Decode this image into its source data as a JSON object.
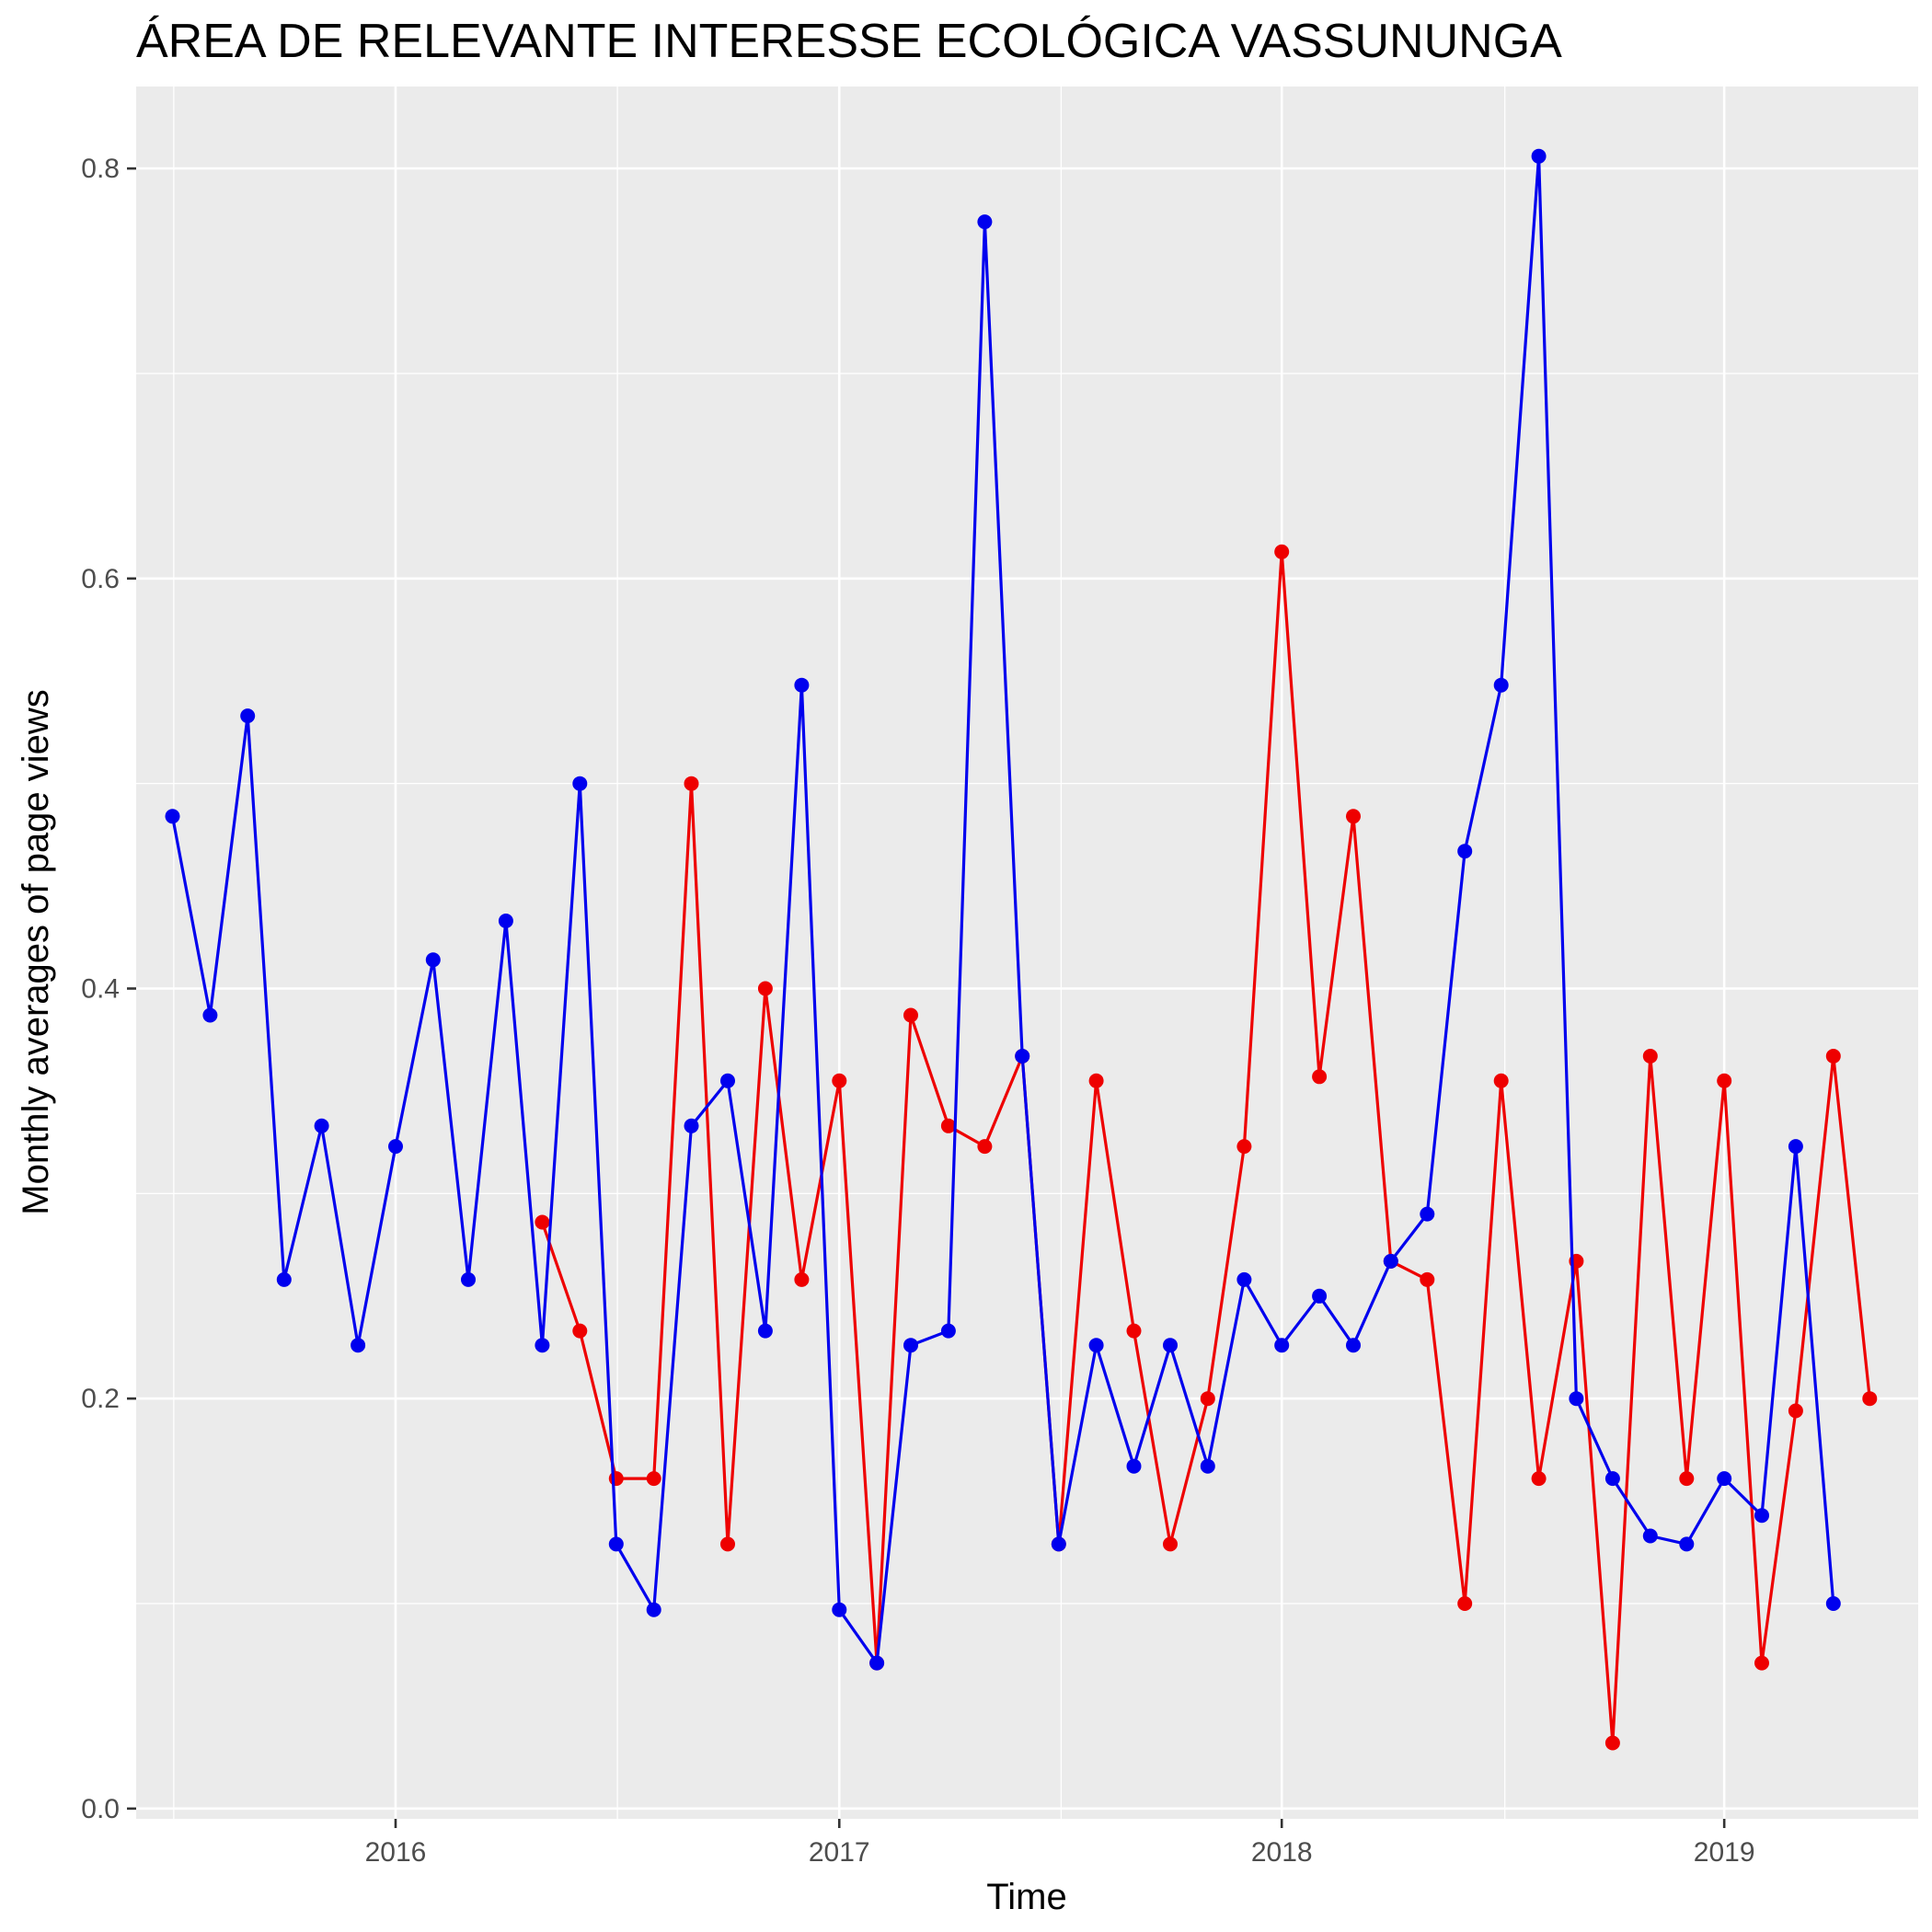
{
  "chart_data": {
    "type": "line",
    "title": "ÁREA DE RELEVANTE INTERESSE ECOLÓGICA VASSUNUNGA",
    "xlabel": "Time",
    "ylabel": "Monthly averages of page views",
    "xlim": [
      "2015-06-01",
      "2019-06-10"
    ],
    "ylim": [
      -0.005,
      0.84
    ],
    "x_ticks": [
      "2016-01-01",
      "2017-01-01",
      "2018-01-01",
      "2019-01-01"
    ],
    "x_tick_labels": [
      "2016",
      "2017",
      "2018",
      "2019"
    ],
    "y_ticks": [
      0.0,
      0.2,
      0.4,
      0.6,
      0.8
    ],
    "y_tick_labels": [
      "0.0",
      "0.2",
      "0.4",
      "0.6",
      "0.8"
    ],
    "grid": true,
    "legend": "none",
    "background": "#EBEBEB",
    "series": [
      {
        "color": "#0000EE",
        "x": [
          "2015-07-01",
          "2015-08-01",
          "2015-09-01",
          "2015-10-01",
          "2015-11-01",
          "2015-12-01",
          "2016-01-01",
          "2016-02-01",
          "2016-03-01",
          "2016-04-01",
          "2016-05-01",
          "2016-06-01",
          "2016-07-01",
          "2016-08-01",
          "2016-09-01",
          "2016-10-01",
          "2016-11-01",
          "2016-12-01",
          "2017-01-01",
          "2017-02-01",
          "2017-03-01",
          "2017-04-01",
          "2017-05-01",
          "2017-06-01",
          "2017-07-01",
          "2017-08-01",
          "2017-09-01",
          "2017-10-01",
          "2017-11-01",
          "2017-12-01",
          "2018-01-01",
          "2018-02-01",
          "2018-03-01",
          "2018-04-01",
          "2018-05-01",
          "2018-06-01",
          "2018-07-01",
          "2018-08-01",
          "2018-09-01",
          "2018-10-01",
          "2018-11-01",
          "2018-12-01",
          "2019-01-01",
          "2019-02-01",
          "2019-03-01",
          "2019-04-01"
        ],
        "values": [
          0.484,
          0.387,
          0.533,
          0.258,
          0.333,
          0.226,
          0.323,
          0.414,
          0.258,
          0.433,
          0.226,
          0.5,
          0.129,
          0.097,
          0.333,
          0.355,
          0.233,
          0.548,
          0.097,
          0.071,
          0.226,
          0.233,
          0.774,
          0.367,
          0.129,
          0.226,
          0.167,
          0.226,
          0.167,
          0.258,
          0.226,
          0.25,
          0.226,
          0.267,
          0.29,
          0.467,
          0.548,
          0.806,
          0.2,
          0.161,
          0.133,
          0.129,
          0.161,
          0.143,
          0.323,
          0.1
        ]
      },
      {
        "color": "#EE0000",
        "x": [
          "2016-05-01",
          "2016-06-01",
          "2016-07-01",
          "2016-08-01",
          "2016-09-01",
          "2016-10-01",
          "2016-11-01",
          "2016-12-01",
          "2017-01-01",
          "2017-02-01",
          "2017-03-01",
          "2017-04-01",
          "2017-05-01",
          "2017-06-01",
          "2017-07-01",
          "2017-08-01",
          "2017-09-01",
          "2017-10-01",
          "2017-11-01",
          "2017-12-01",
          "2018-01-01",
          "2018-02-01",
          "2018-03-01",
          "2018-04-01",
          "2018-05-01",
          "2018-06-01",
          "2018-07-01",
          "2018-08-01",
          "2018-09-01",
          "2018-10-01",
          "2018-11-01",
          "2018-12-01",
          "2019-01-01",
          "2019-02-01",
          "2019-03-01",
          "2019-04-01",
          "2019-05-01"
        ],
        "values": [
          0.286,
          0.233,
          0.161,
          0.161,
          0.5,
          0.129,
          0.4,
          0.258,
          0.355,
          0.071,
          0.387,
          0.333,
          0.323,
          0.367,
          0.129,
          0.355,
          0.233,
          0.129,
          0.2,
          0.323,
          0.613,
          0.357,
          0.484,
          0.267,
          0.258,
          0.1,
          0.355,
          0.161,
          0.267,
          0.032,
          0.367,
          0.161,
          0.355,
          0.071,
          0.194,
          0.367,
          0.2
        ]
      }
    ]
  }
}
